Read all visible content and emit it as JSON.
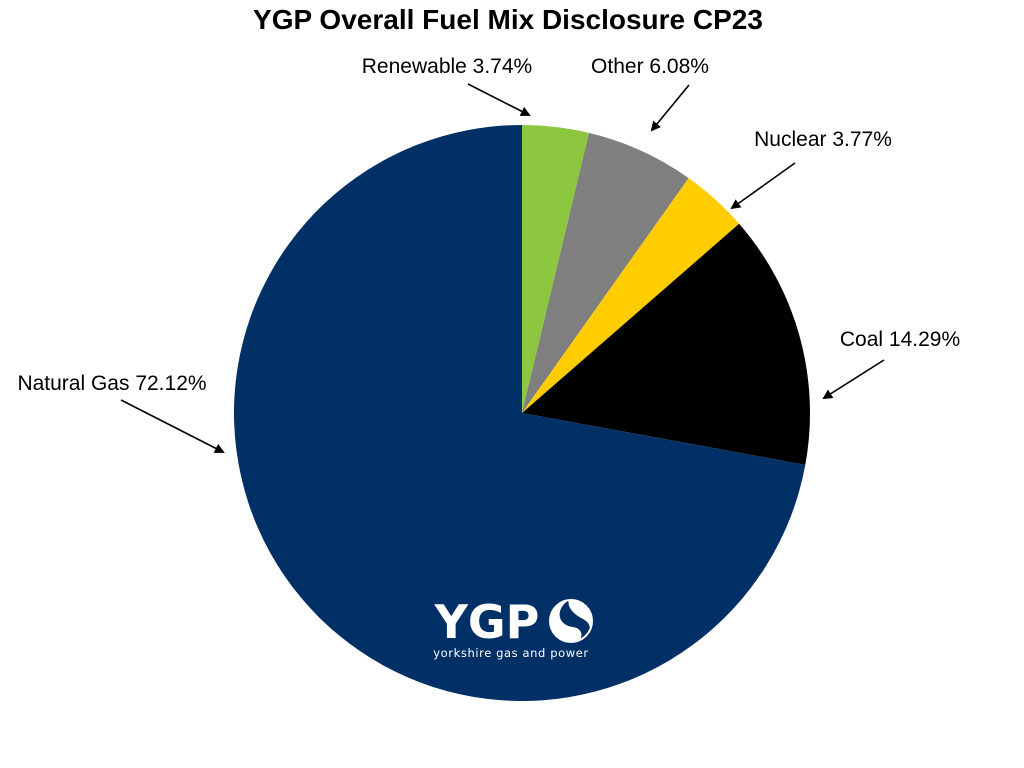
{
  "chart_data": {
    "type": "pie",
    "title": "YGP Overall Fuel Mix Disclosure CP23",
    "slices": [
      {
        "name": "Renewable",
        "value": 3.74,
        "label": "Renewable 3.74%",
        "color": "#8dc63f"
      },
      {
        "name": "Other",
        "value": 6.08,
        "label": "Other 6.08%",
        "color": "#7f7f7f"
      },
      {
        "name": "Nuclear",
        "value": 3.77,
        "label": "Nuclear 3.77%",
        "color": "#ffcc00"
      },
      {
        "name": "Coal",
        "value": 14.29,
        "label": "Coal 14.29%",
        "color": "#000000"
      },
      {
        "name": "Natural Gas",
        "value": 72.12,
        "label": "Natural Gas 72.12%",
        "color": "#003066"
      }
    ],
    "start_angle": "12 o'clock",
    "direction": "clockwise",
    "legend": "none",
    "labels": "outside with arrows"
  },
  "logo": {
    "text": "YGP",
    "tagline": "yorkshire gas and power",
    "icon": "swirl-icon"
  }
}
